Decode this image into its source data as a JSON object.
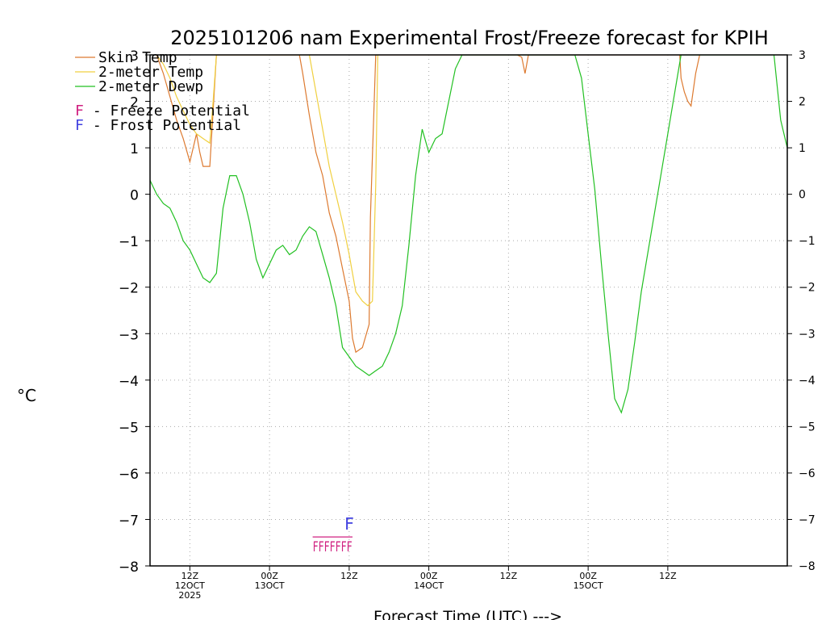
{
  "chart_data": {
    "type": "line",
    "title": "2025101206 nam Experimental Frost/Freeze forecast for KPIH",
    "ylabel": "°C",
    "xlabel": "Forecast Time (UTC) --->",
    "ylim": [
      -8,
      3
    ],
    "xlim": [
      6,
      102
    ],
    "yticks": [
      3,
      2,
      1,
      0,
      -1,
      -2,
      -3,
      -4,
      -5,
      -6,
      -7,
      -8
    ],
    "xticks": [
      {
        "x": 12,
        "line1": "12Z",
        "line2": "12OCT",
        "line3": "2025"
      },
      {
        "x": 24,
        "line1": "00Z",
        "line2": "13OCT",
        "line3": ""
      },
      {
        "x": 36,
        "line1": "12Z",
        "line2": "",
        "line3": ""
      },
      {
        "x": 48,
        "line1": "00Z",
        "line2": "14OCT",
        "line3": ""
      },
      {
        "x": 60,
        "line1": "12Z",
        "line2": "",
        "line3": ""
      },
      {
        "x": 72,
        "line1": "00Z",
        "line2": "15OCT",
        "line3": ""
      },
      {
        "x": 84,
        "line1": "12Z",
        "line2": "",
        "line3": ""
      }
    ],
    "legend": [
      {
        "label": "Skin Temp",
        "color": "#dd7a30"
      },
      {
        "label": "2-meter Temp",
        "color": "#f0d040"
      },
      {
        "label": "2-meter Dewp",
        "color": "#22c022"
      }
    ],
    "potential_legend": [
      {
        "mark": "F",
        "text": " - Freeze Potential",
        "color": "#d02080"
      },
      {
        "mark": "F",
        "text": " - Frost Potential",
        "color": "#4040e0"
      }
    ],
    "series": [
      {
        "name": "Skin Temp",
        "color": "#dd7a30",
        "x": [
          7,
          8,
          9,
          10,
          11,
          12,
          12.5,
          13,
          13.5,
          14,
          14.5,
          15,
          15.5,
          16,
          28.5,
          29,
          30,
          31,
          32,
          33,
          34,
          35,
          36,
          36.5,
          37,
          38,
          39,
          39.2,
          40,
          40.5,
          61.3,
          62,
          62.5,
          63,
          63.5,
          85.8,
          86,
          86.5,
          87,
          87.5,
          88.2,
          88.8
        ],
        "y": [
          3,
          2.6,
          2.1,
          1.6,
          1.2,
          0.7,
          1.0,
          1.3,
          0.9,
          0.6,
          0.6,
          0.6,
          1.8,
          3,
          3,
          2.6,
          1.7,
          0.9,
          0.4,
          -0.4,
          -0.9,
          -1.6,
          -2.3,
          -3.1,
          -3.4,
          -3.3,
          -2.8,
          -0.5,
          3,
          3,
          3,
          2.95,
          2.6,
          3,
          3,
          3,
          2.5,
          2.2,
          2,
          1.9,
          2.6,
          3
        ]
      },
      {
        "name": "2-meter Temp",
        "color": "#f0d040",
        "x": [
          7,
          8,
          9,
          10,
          11,
          12,
          13,
          14,
          15,
          15.5,
          16,
          30,
          31,
          32,
          33,
          34,
          35,
          36,
          37,
          38,
          38.8,
          39.5,
          40,
          40.3
        ],
        "y": [
          3,
          2.8,
          2.5,
          2.1,
          1.8,
          1.5,
          1.3,
          1.2,
          1.1,
          2,
          3,
          3,
          2.2,
          1.4,
          0.6,
          0,
          -0.6,
          -1.3,
          -2.1,
          -2.3,
          -2.4,
          -2.3,
          0.2,
          3
        ]
      },
      {
        "name": "2-meter Dewp",
        "color": "#22c022",
        "x": [
          6,
          7,
          8,
          9,
          10,
          11,
          12,
          13,
          14,
          15,
          16,
          17,
          18,
          19,
          20,
          21,
          22,
          23,
          24,
          25,
          26,
          27,
          28,
          29,
          30,
          31,
          32,
          33,
          34,
          35,
          36,
          37,
          38,
          39,
          40,
          41,
          42,
          43,
          44,
          45,
          46,
          47,
          48,
          49,
          50,
          51,
          52,
          53,
          54,
          55,
          70,
          71,
          72,
          73,
          74,
          75,
          76,
          77,
          78,
          79,
          80,
          86,
          87,
          88,
          89,
          90,
          91,
          92,
          93,
          94,
          95,
          96,
          97,
          98,
          99,
          100,
          101,
          102
        ],
        "y": [
          0.3,
          0.0,
          -0.2,
          -0.3,
          -0.6,
          -1.0,
          -1.2,
          -1.5,
          -1.8,
          -1.9,
          -1.7,
          -0.3,
          0.4,
          0.4,
          0.0,
          -0.6,
          -1.4,
          -1.8,
          -1.5,
          -1.2,
          -1.1,
          -1.3,
          -1.2,
          -0.9,
          -0.7,
          -0.8,
          -1.3,
          -1.8,
          -2.4,
          -3.3,
          -3.5,
          -3.7,
          -3.8,
          -3.9,
          -3.8,
          -3.7,
          -3.4,
          -3.0,
          -2.4,
          -1.1,
          0.4,
          1.4,
          0.9,
          1.2,
          1.3,
          2.0,
          2.7,
          3.0,
          3.0,
          3.0,
          3.0,
          2.5,
          1.3,
          0.1,
          -1.5,
          -3.0,
          -4.4,
          -4.7,
          -4.2,
          -3.2,
          -2.1,
          3.0,
          3.0,
          3.0,
          3.0,
          3.0,
          3.0,
          3.0,
          3.0,
          3.0,
          3.0,
          3.0,
          3.0,
          3.0,
          3.0,
          3.0,
          1.6,
          1.0
        ]
      }
    ],
    "frost_marks": [
      {
        "x": 36,
        "y": -7.1,
        "label": "F"
      }
    ],
    "freeze_marks": {
      "x_start": 30.5,
      "x_end": 36.5,
      "y": -7.55,
      "label": "FFFFFFF"
    }
  }
}
